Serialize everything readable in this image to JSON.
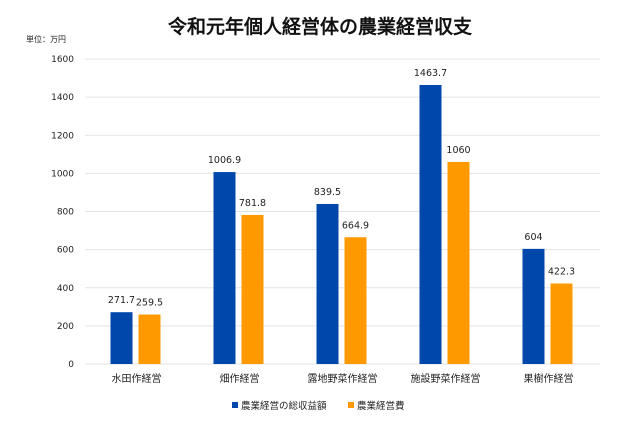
{
  "chart_data": {
    "type": "bar",
    "title": "令和元年個人経営体の農業経営収支",
    "unit_label": "単位：万円",
    "categories": [
      "水田作経営",
      "畑作経営",
      "露地野菜作経営",
      "施設野菜作経営",
      "果樹作経営"
    ],
    "series": [
      {
        "name": "農業経営の総収益額",
        "values": [
          271.7,
          1006.9,
          839.5,
          1463.7,
          604
        ],
        "labels": [
          "271.7",
          "1006.9",
          "839.5",
          "1463.7",
          "604"
        ],
        "color": "#0047AB"
      },
      {
        "name": "農業経営費",
        "values": [
          259.5,
          781.8,
          664.9,
          1060,
          422.3
        ],
        "labels": [
          "259.5",
          "781.8",
          "664.9",
          "1060",
          "422.3"
        ],
        "color": "#FF9900"
      }
    ],
    "ylim": [
      0,
      1600
    ],
    "yticks": [
      "0",
      "200",
      "400",
      "600",
      "800",
      "1000",
      "1200",
      "1400",
      "1600"
    ],
    "grid": true,
    "legend": "bottom"
  }
}
